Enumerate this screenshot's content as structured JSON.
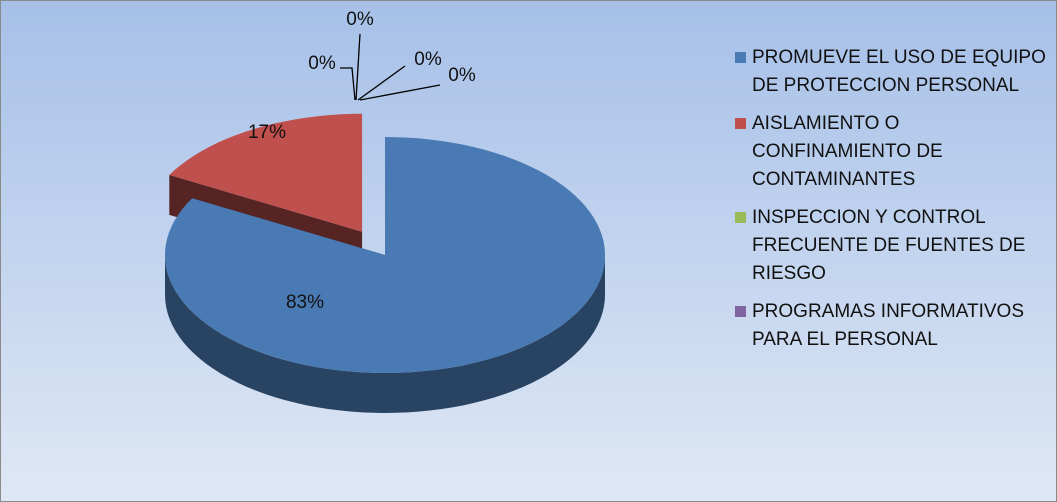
{
  "chart_data": {
    "type": "pie",
    "categories": [
      "PROMUEVE EL USO DE EQUIPO DE PROTECCION PERSONAL",
      "AISLAMIENTO O CONFINAMIENTO DE CONTAMINANTES",
      "INSPECCION Y CONTROL FRECUENTE DE FUENTES DE RIESGO",
      "PROGRAMAS INFORMATIVOS PARA EL PERSONAL",
      null,
      null
    ],
    "values": [
      83,
      17,
      0,
      0,
      0,
      0
    ],
    "value_labels": [
      "83%",
      "17%",
      "0%",
      "0%",
      "0%",
      "0%"
    ],
    "colors": [
      "#4a7ab4",
      "#c0504d",
      "#9bbb59",
      "#8064a2",
      "#4bacc6",
      "#f79646"
    ],
    "legend": "right"
  }
}
